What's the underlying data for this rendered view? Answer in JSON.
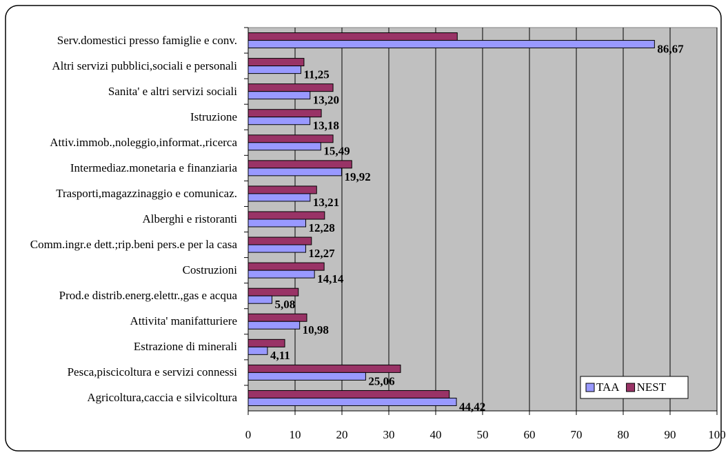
{
  "chart_data": {
    "type": "hbar",
    "categories": [
      "Serv.domestici presso famiglie e conv.",
      "Altri servizi pubblici,sociali e personali",
      "Sanita' e altri servizi sociali",
      "Istruzione",
      "Attiv.immob.,noleggio,informat.,ricerca",
      "Intermediaz.monetaria e finanziaria",
      "Trasporti,magazzinaggio e comunicaz.",
      "Alberghi e ristoranti",
      "Comm.ingr.e dett.;rip.beni pers.e per la casa",
      "Costruzioni",
      "Prod.e distrib.energ.elettr.,gas e acqua",
      "Attivita' manifatturiere",
      "Estrazione di minerali",
      "Pesca,piscicoltura e servizi connessi",
      "Agricoltura,caccia e silvicoltura"
    ],
    "series": [
      {
        "name": "NEST",
        "color": "#993366",
        "values": [
          44.6,
          11.9,
          18.1,
          15.6,
          18.1,
          22.1,
          14.6,
          16.3,
          13.5,
          16.2,
          10.7,
          12.5,
          7.8,
          32.5,
          42.9
        ]
      },
      {
        "name": "TAA",
        "color": "#9999ff",
        "values": [
          86.67,
          11.25,
          13.2,
          13.18,
          15.49,
          19.92,
          13.21,
          12.28,
          12.27,
          14.14,
          5.08,
          10.98,
          4.11,
          25.06,
          44.42
        ],
        "value_labels": [
          "86,67",
          "11,25",
          "13,20",
          "13,18",
          "15,49",
          "19,92",
          "13,21",
          "12,28",
          "12,27",
          "14,14",
          "5,08",
          "10,98",
          "4,11",
          "25,06",
          "44,42"
        ]
      }
    ],
    "legend_order": [
      1,
      0
    ],
    "xlim": [
      0,
      100
    ],
    "xticks": [
      0,
      10,
      20,
      30,
      40,
      50,
      60,
      70,
      80,
      90,
      100
    ],
    "grid": true,
    "legend": "lower right",
    "plot_background": "#c0c0c0"
  }
}
